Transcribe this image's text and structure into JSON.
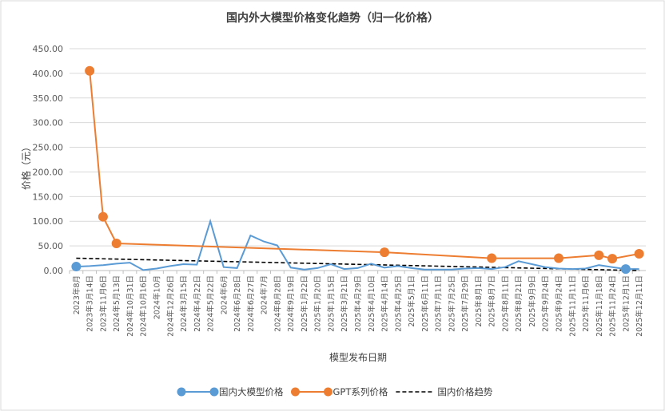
{
  "chart_data": {
    "type": "line",
    "title": "国内外大模型价格变化趋势（归一化价格）",
    "xlabel": "模型发布日期",
    "ylabel": "价格（元）",
    "ylim": [
      0,
      450
    ],
    "yticks": [
      "0.00",
      "50.00",
      "100.00",
      "150.00",
      "200.00",
      "250.00",
      "300.00",
      "350.00",
      "400.00",
      "450.00"
    ],
    "categories": [
      "2023年8月",
      "2023年3月14日",
      "2023年11月6日",
      "2024年5月13日",
      "2024年10月31日",
      "2024年10月16日",
      "2024年10月",
      "2024年12月26日",
      "2024年3月15日",
      "2024年4月22日",
      "2024年5月22日",
      "2024年6月",
      "2024年6月28日",
      "2024年6月27日",
      "2024年7月",
      "2024年8月28日",
      "2024年9月19日",
      "2025年1月22日",
      "2025年1月20日",
      "2025年1月15日",
      "2025年3月21日",
      "2025年4月29日",
      "2025年4月10日",
      "2025年4月14日",
      "2025年4月25日",
      "2025年5月1日",
      "2025年6月11日",
      "2025年7月11日",
      "2025年7月25日",
      "2025年7月29日",
      "2025年8月1日",
      "2025年8月7日",
      "2025年8月11日",
      "2025年8月21日",
      "2025年9月9日",
      "2025年9月24日",
      "2025年9月24日",
      "2025年11月11日",
      "2025年11月6日",
      "2025年11月18日",
      "2025年11月24日",
      "2025年12月1日",
      "2025年12月11日"
    ],
    "series": [
      {
        "name": "国内大模型价格",
        "color": "#5B9BD5",
        "values": [
          8,
          9,
          11,
          14,
          16,
          1,
          4,
          9,
          13,
          12,
          100,
          7,
          5,
          71,
          59,
          51,
          6,
          2,
          5,
          13,
          3,
          5,
          14,
          6,
          9,
          5,
          2,
          2,
          2,
          4,
          5,
          3,
          7,
          19,
          13,
          7,
          4,
          3,
          4,
          11,
          7,
          3,
          3
        ]
      },
      {
        "name": "GPT系列价格",
        "color": "#ED7D31",
        "points": [
          [
            1,
            405
          ],
          [
            2,
            109
          ],
          [
            3,
            55
          ],
          [
            23,
            37
          ],
          [
            31,
            25
          ],
          [
            36,
            25
          ],
          [
            39,
            31
          ],
          [
            40,
            24
          ],
          [
            42,
            34
          ]
        ]
      },
      {
        "name": "国内价格趋势",
        "color": "#000000",
        "trend": [
          25,
          0
        ]
      }
    ],
    "markers": {
      "国内大模型价格": [
        0,
        41
      ]
    },
    "legend_position": "bottom",
    "grid": "horizontal"
  }
}
